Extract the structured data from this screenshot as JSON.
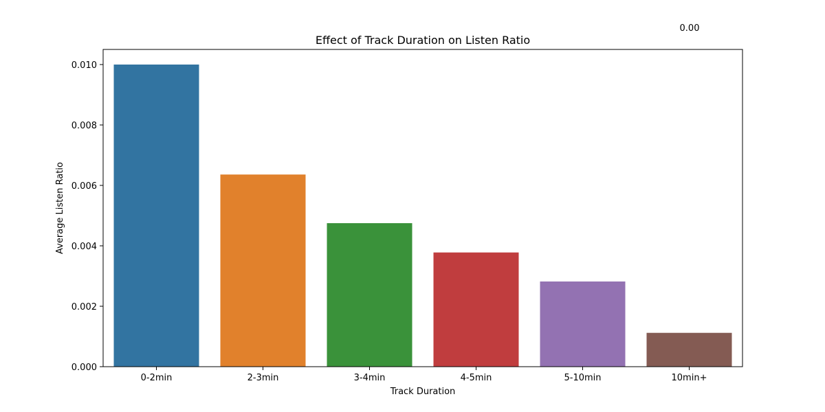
{
  "chart_data": {
    "type": "bar",
    "title": "Effect of Track Duration on Listen Ratio",
    "xlabel": "Track Duration",
    "ylabel": "Average Listen Ratio",
    "categories": [
      "0-2min",
      "2-3min",
      "3-4min",
      "4-5min",
      "5-10min",
      "10min+"
    ],
    "values": [
      0.01,
      0.00636,
      0.00475,
      0.00378,
      0.00282,
      0.00112
    ],
    "colors": [
      "#3274a1",
      "#e1812c",
      "#3a923a",
      "#c03d3e",
      "#9372b2",
      "#845b53"
    ],
    "ylim": [
      0,
      0.0105
    ],
    "yticks": [
      0.0,
      0.002,
      0.004,
      0.006,
      0.008,
      0.01
    ],
    "ytick_labels": [
      "0.000",
      "0.002",
      "0.004",
      "0.006",
      "0.008",
      "0.010"
    ],
    "grid": false,
    "legend": "none",
    "annotation": "0.00"
  }
}
